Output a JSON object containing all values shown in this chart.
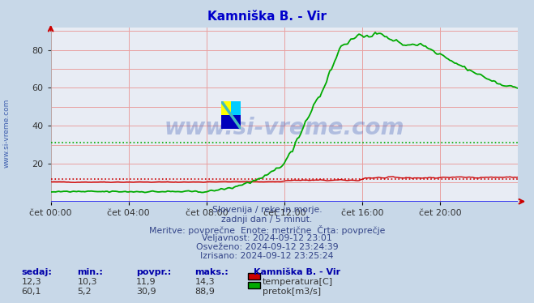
{
  "title": "Kamniška B. - Vir",
  "title_color": "#0000cc",
  "bg_color": "#c8d8e8",
  "plot_bg_color": "#e8ecf4",
  "grid_color_major": "#e8a0a0",
  "grid_color_minor": "#e8c0c0",
  "x_min": 0,
  "x_max": 288,
  "y_min": 0,
  "y_max": 92,
  "y_ticks": [
    20,
    40,
    60,
    80
  ],
  "x_tick_positions": [
    0,
    48,
    96,
    144,
    192,
    240
  ],
  "x_tick_labels": [
    "čet 00:00",
    "čet 04:00",
    "čet 08:00",
    "čet 12:00",
    "čet 16:00",
    "čet 20:00"
  ],
  "temp_color": "#cc0000",
  "flow_color": "#00aa00",
  "avg_temp": 11.9,
  "avg_flow": 30.9,
  "watermark": "www.si-vreme.com",
  "subtitle1": "Slovenija / reke in morje.",
  "subtitle2": "zadnji dan / 5 minut.",
  "subtitle3": "Meritve: povprečne  Enote: metrične  Črta: povprečje",
  "subtitle4": "Veljavnost: 2024-09-12 23:01",
  "subtitle5": "Osveženo: 2024-09-12 23:24:39",
  "subtitle6": "Izrisano: 2024-09-12 23:25:24",
  "legend_entries": [
    {
      "label": "temperatura[C]",
      "color": "#cc0000"
    },
    {
      "label": "pretok[m3/s]",
      "color": "#00aa00"
    }
  ],
  "table_headers": [
    "sedaj:",
    "min.:",
    "povpr.:",
    "maks.:"
  ],
  "table_row1": [
    "12,3",
    "10,3",
    "11,9",
    "14,3"
  ],
  "table_row2": [
    "60,1",
    "5,2",
    "30,9",
    "88,9"
  ],
  "station_label": "Kamniška B. - Vir",
  "left_label": "www.si-vreme.com",
  "arrow_color": "#cc0000",
  "axis_color": "#0000ee",
  "axis_bottom_color": "#2222ee",
  "logo_colors": [
    "#ffff00",
    "#00ccff",
    "#0000cc",
    "#44aaaa"
  ]
}
